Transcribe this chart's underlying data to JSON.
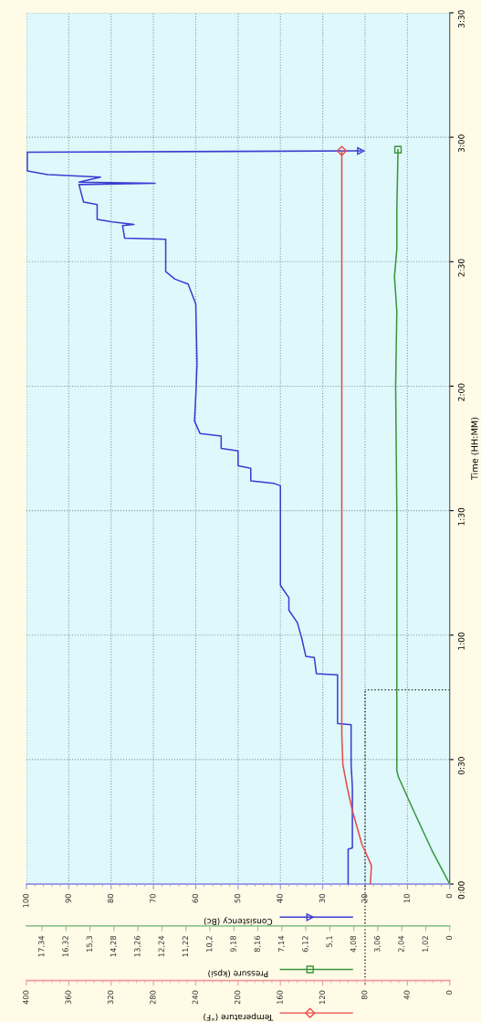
{
  "chart_data": [
    {
      "type": "line",
      "ylabel": "Time (HH:MM)",
      "xlabel": "Consistency (Bc)",
      "x2label": "Pressure (kpsi)",
      "ylim": [
        0,
        3.5
      ],
      "yticks": [
        {
          "value": 0,
          "label": "0:00"
        },
        {
          "value": 0.5,
          "label": "0:30"
        },
        {
          "value": 1,
          "label": "1:00"
        },
        {
          "value": 1.5,
          "label": "1:30"
        },
        {
          "value": 2,
          "label": "2:00"
        },
        {
          "value": 2.5,
          "label": "2:30"
        },
        {
          "value": 3,
          "label": "3:00"
        },
        {
          "value": 3.5,
          "label": "3:30"
        }
      ],
      "xlim": [
        100,
        0
      ],
      "xticks": [
        0,
        10,
        20,
        30,
        40,
        50,
        60,
        70,
        80,
        90,
        100
      ],
      "x2lim": [
        18,
        0
      ],
      "x2ticks": [
        0,
        {
          "value": 1.02,
          "label": "1,02"
        },
        {
          "value": 2.04,
          "label": "2,04"
        },
        {
          "value": 3.06,
          "label": "3,06"
        },
        {
          "value": 4.08,
          "label": "4,08"
        },
        {
          "value": 5.1,
          "label": "5,1"
        },
        {
          "value": 6.12,
          "label": "6,12"
        },
        {
          "value": 7.14,
          "label": "7,14"
        },
        {
          "value": 8.16,
          "label": "8,16"
        },
        {
          "value": 9.18,
          "label": "9,18"
        },
        {
          "value": 10.2,
          "label": "10,2"
        },
        {
          "value": 11.22,
          "label": "11,22"
        },
        {
          "value": 12.24,
          "label": "12,24"
        },
        {
          "value": 13.26,
          "label": "13,26"
        },
        {
          "value": 14.28,
          "label": "14,28"
        },
        {
          "value": 15.3,
          "label": "15,3"
        },
        {
          "value": 16.32,
          "label": "16,32"
        },
        {
          "value": 17.34,
          "label": "17,34"
        }
      ],
      "grid": true,
      "series": [
        {
          "color": "#3c3cd2",
          "values": [
            0,
            0.14,
            0.145,
            0.39,
            0.48,
            0.64,
            0.645,
            0.84,
            0.845,
            0.91,
            0.915,
            0.99,
            1.05,
            1.1,
            1.15,
            1.2,
            1.6,
            1.61,
            1.62,
            1.67,
            1.68,
            1.74,
            1.75,
            1.8,
            1.81,
            1.86,
            1.96,
            2.09,
            2.33,
            2.41,
            2.43,
            2.46,
            2.59,
            2.595,
            2.645,
            2.65,
            2.66,
            2.67,
            2.73,
            2.74,
            2.81,
            2.815,
            2.82,
            2.84,
            2.85,
            2.865,
            2.94,
            2.945
          ],
          "x": [
            24,
            24,
            23,
            23,
            23.3,
            23.3,
            26.5,
            26.5,
            31.5,
            32,
            34,
            35,
            36,
            38,
            38,
            40,
            40,
            41.6,
            47,
            47,
            50,
            50,
            54,
            54,
            59,
            60.3,
            60,
            59.7,
            60,
            61.8,
            64.9,
            67.1,
            67.1,
            76.8,
            77.3,
            74.6,
            79.7,
            83.3,
            83.3,
            86.5,
            87.6,
            69.6,
            87.6,
            82.5,
            95,
            99.8,
            99.8,
            21
          ]
        },
        {
          "color": "#3a963a",
          "axis": "x2",
          "values": [
            0,
            0.136,
            0.295,
            0.43,
            0.455,
            1.0,
            1.5,
            2.0,
            2.3,
            2.44,
            2.55,
            2.7,
            2.95
          ],
          "x": [
            0,
            0.76,
            1.54,
            2.18,
            2.25,
            2.25,
            2.25,
            2.3,
            2.25,
            2.35,
            2.25,
            2.25,
            2.2
          ]
        }
      ],
      "ref_lines": [
        {
          "axis": "x",
          "value": 20,
          "color": "#222222",
          "line_style": "dotted"
        },
        {
          "axis": "y",
          "value": 0.78,
          "color": "#222222",
          "line_style": "dotted"
        }
      ]
    },
    {
      "type": "line",
      "xlabel": "Temperature (°F)",
      "tick_labels": "x",
      "ylim": [
        0,
        3.5
      ],
      "xlim": [
        400,
        0
      ],
      "xticks": [
        0,
        40,
        80,
        120,
        160,
        200,
        240,
        280,
        320,
        360,
        400
      ],
      "series": [
        {
          "color": "#e84848",
          "values": [
            0,
            0.075,
            0.16,
            0.295,
            0.39,
            0.48,
            0.6,
            2.945
          ],
          "x": [
            75,
            74,
            83,
            92,
            97,
            101,
            102,
            102
          ]
        }
      ]
    }
  ]
}
